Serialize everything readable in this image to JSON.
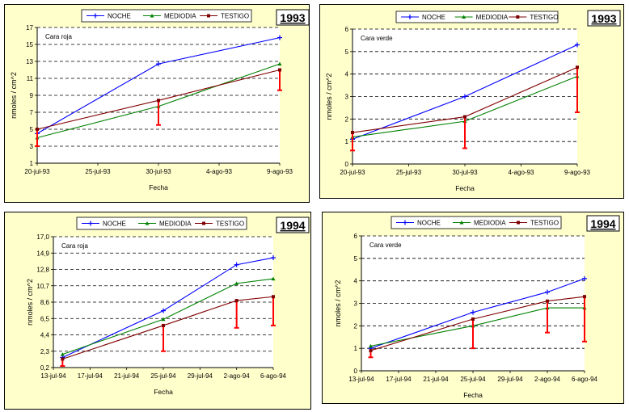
{
  "chart_data": [
    {
      "type": "line",
      "year": "1993",
      "subtitle": "Cara roja",
      "xlabel": "Fecha",
      "ylabel": "nmoles / cm^2",
      "x_ticks": [
        "20-jul-93",
        "25-jul-93",
        "30-jul-93",
        "4-ago-93",
        "9-ago-93"
      ],
      "y_ticks": [
        "1",
        "3",
        "5",
        "7",
        "9",
        "11",
        "13",
        "15",
        "17"
      ],
      "ylim": [
        1,
        17
      ],
      "xlim": [
        "1993-07-20",
        "1993-08-09"
      ],
      "legend_position": "top",
      "grid": "horizontal dashed",
      "x": [
        "1993-07-20",
        "1993-07-30",
        "1993-08-09"
      ],
      "series": [
        {
          "name": "NOCHE",
          "values": [
            4.5,
            12.7,
            15.8
          ],
          "color": "#0000ff",
          "marker": "plus"
        },
        {
          "name": "MEDIODIA",
          "values": [
            4.0,
            7.7,
            12.7
          ],
          "color": "#008000",
          "marker": "triangle"
        },
        {
          "name": "TESTIGO",
          "values": [
            5.0,
            8.4,
            12.0
          ],
          "color": "#800000",
          "marker": "square",
          "error_low": [
            3.0,
            5.5,
            9.6
          ]
        }
      ]
    },
    {
      "type": "line",
      "year": "1993",
      "subtitle": "Cara verde",
      "xlabel": "Fecha",
      "ylabel": "nmoles / cm^2",
      "x_ticks": [
        "20-jul-93",
        "25-jul-93",
        "30-jul-93",
        "4-ago-93",
        "9-ago-93"
      ],
      "y_ticks": [
        "0",
        "1",
        "2",
        "3",
        "4",
        "5",
        "6"
      ],
      "ylim": [
        0,
        6
      ],
      "xlim": [
        "1993-07-20",
        "1993-08-09"
      ],
      "legend_position": "top",
      "grid": "horizontal dashed",
      "x": [
        "1993-07-20",
        "1993-07-30",
        "1993-08-09"
      ],
      "series": [
        {
          "name": "NOCHE",
          "values": [
            1.1,
            3.0,
            5.3
          ],
          "color": "#0000ff",
          "marker": "plus"
        },
        {
          "name": "MEDIODIA",
          "values": [
            1.2,
            1.9,
            3.9
          ],
          "color": "#008000",
          "marker": "triangle"
        },
        {
          "name": "TESTIGO",
          "values": [
            1.4,
            2.1,
            4.3
          ],
          "color": "#800000",
          "marker": "square",
          "error_low": [
            0.6,
            0.7,
            2.3
          ]
        }
      ]
    },
    {
      "type": "line",
      "year": "1994",
      "subtitle": "Cara roja",
      "xlabel": "Fecha",
      "ylabel": "nmoles / cm^2",
      "x_ticks": [
        "13-jul-94",
        "17-jul-94",
        "21-jul-94",
        "25-jul-94",
        "29-jul-94",
        "2-ago-94",
        "6-ago-94"
      ],
      "y_ticks": [
        "0,2",
        "2,3",
        "4,4",
        "6,5",
        "8,6",
        "10,7",
        "12,8",
        "14,9",
        "17,0"
      ],
      "ylim": [
        0.2,
        17.0
      ],
      "xlim": [
        "1994-07-13",
        "1994-08-06"
      ],
      "legend_position": "top",
      "grid": "horizontal dashed",
      "x": [
        "1994-07-14",
        "1994-07-25",
        "1994-08-02",
        "1994-08-06"
      ],
      "series": [
        {
          "name": "NOCHE",
          "values": [
            1.5,
            7.5,
            13.4,
            14.3
          ],
          "color": "#0000ff",
          "marker": "plus"
        },
        {
          "name": "MEDIODIA",
          "values": [
            1.9,
            6.4,
            11.0,
            11.6
          ],
          "color": "#008000",
          "marker": "triangle"
        },
        {
          "name": "TESTIGO",
          "values": [
            1.3,
            5.6,
            8.8,
            9.3
          ],
          "color": "#800000",
          "marker": "square",
          "error_low": [
            0.4,
            2.3,
            5.3,
            5.6
          ]
        }
      ]
    },
    {
      "type": "line",
      "year": "1994",
      "subtitle": "Cara verde",
      "xlabel": "Fecha",
      "ylabel": "nmoles / cm^2",
      "x_ticks": [
        "13-jul-94",
        "17-jul-94",
        "21-jul-94",
        "25-jul-94",
        "29-jul-94",
        "2-ago-94",
        "6-ago-94"
      ],
      "y_ticks": [
        "0",
        "1",
        "2",
        "3",
        "4",
        "5",
        "6"
      ],
      "ylim": [
        0,
        6
      ],
      "xlim": [
        "1994-07-13",
        "1994-08-06"
      ],
      "legend_position": "top",
      "grid": "horizontal dashed",
      "x": [
        "1994-07-14",
        "1994-07-25",
        "1994-08-02",
        "1994-08-06"
      ],
      "series": [
        {
          "name": "NOCHE",
          "values": [
            1.0,
            2.6,
            3.5,
            4.1
          ],
          "color": "#0000ff",
          "marker": "plus"
        },
        {
          "name": "MEDIODIA",
          "values": [
            1.1,
            2.0,
            2.8,
            2.8
          ],
          "color": "#008000",
          "marker": "triangle"
        },
        {
          "name": "TESTIGO",
          "values": [
            0.9,
            2.3,
            3.1,
            3.3
          ],
          "color": "#800000",
          "marker": "square",
          "error_low": [
            0.6,
            1.0,
            1.7,
            1.3
          ]
        }
      ]
    }
  ]
}
